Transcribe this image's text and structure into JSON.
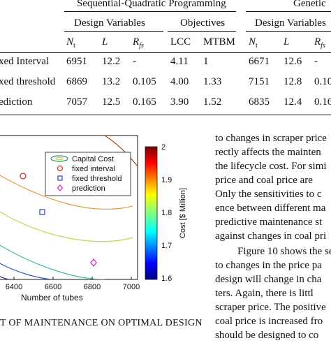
{
  "table": {
    "group_headers": {
      "sqp": "Sequential-Quadratic Programming",
      "ga": "Genetic"
    },
    "sub_headers": {
      "design_variables_1": "Design Variables",
      "objectives": "Objectives",
      "design_variables_2": "Design Variables"
    },
    "column_headers": [
      "N",
      "t",
      "L",
      "R",
      "fs",
      "LCC",
      "MTBM",
      "N",
      "t",
      "L",
      "R",
      "fs"
    ],
    "rows": [
      {
        "label": "xed Interval",
        "cells": [
          "6951",
          "12.2",
          "-",
          "4.11",
          "1",
          "6671",
          "12.6",
          "-"
        ]
      },
      {
        "label": "xed threshold",
        "cells": [
          "6869",
          "13.2",
          "0.105",
          "4.00",
          "1.33",
          "7151",
          "12.8",
          "0.10"
        ]
      },
      {
        "label": "ediction",
        "cells": [
          "7057",
          "12.5",
          "0.165",
          "3.90",
          "1.52",
          "6835",
          "12.4",
          "0.16"
        ]
      }
    ]
  },
  "figure": {
    "legend": [
      "Capital Cost",
      "fixed interval",
      "fixed threshold",
      "prediction"
    ],
    "x_ticks": [
      "6400",
      "6600",
      "6800",
      "7000"
    ],
    "x_label": "Number of tubes",
    "colorbar_ticks": [
      "2",
      "1.9",
      "1.8",
      "1.7",
      "1.6"
    ],
    "colorbar_label": "Cost [$ Million]",
    "caption": "T OF MAINTENANCE ON OPTIMAL DESIGN",
    "colors": {
      "interval": "#d62728",
      "threshold": "#1f3fbf",
      "prediction": "#cc22cc"
    }
  },
  "body_text": [
    "to changes in scraper price",
    "rectly affects the mainten",
    "the lifecycle cost. For simi",
    "price and coal price are",
    "Only the sensitivities to c",
    "ence between different ma",
    "predictive maintenance st",
    "against changes in coal pri",
    "Figure 10 shows the se",
    "to changes in the price pa",
    "design will change in cha",
    "ters.  Again, there is littl",
    "scraper price. The positive",
    "coal price is increased fro",
    "should be designed to co"
  ]
}
